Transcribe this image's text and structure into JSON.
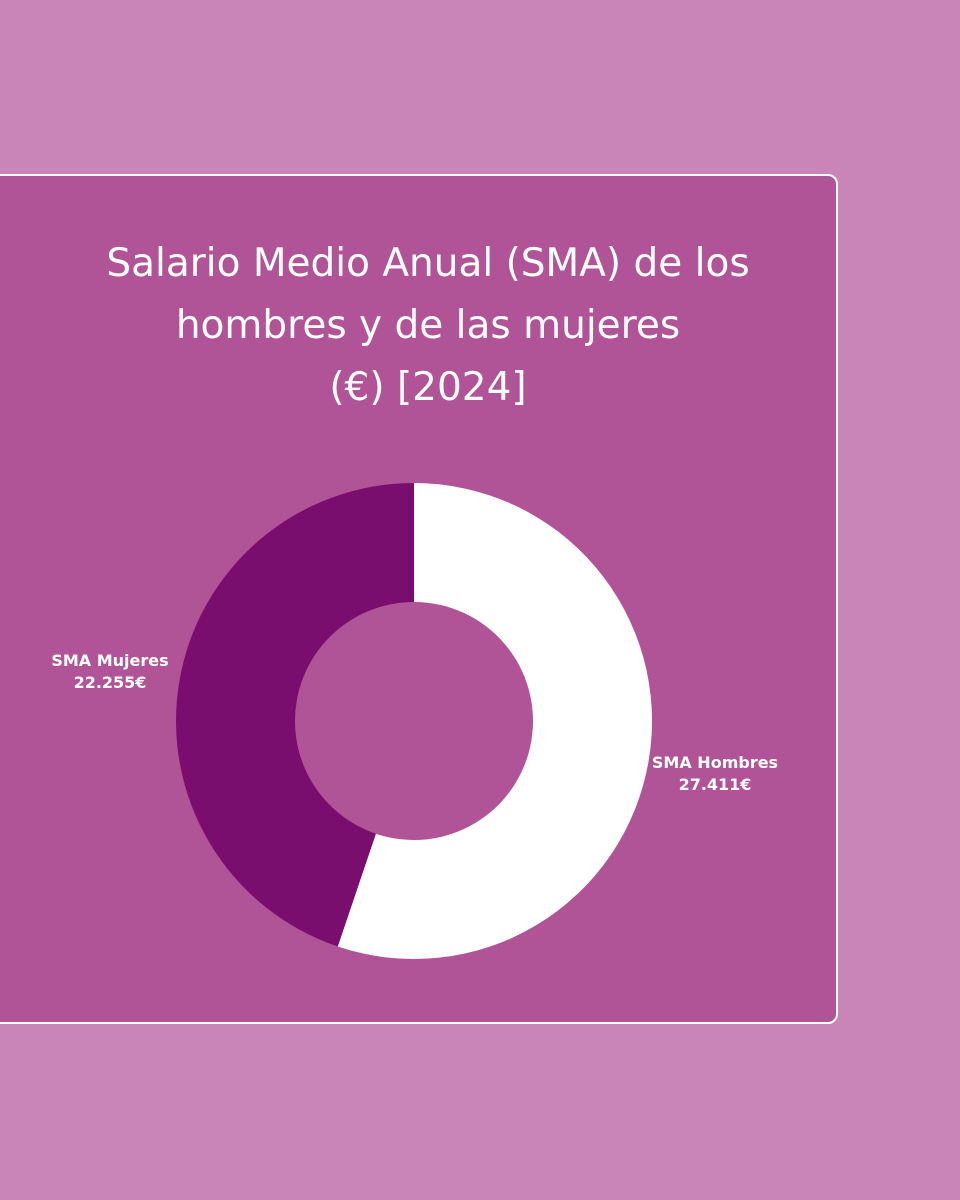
{
  "colors": {
    "page_background": "#c985b7",
    "card_background": "#b05397",
    "card_border": "#ffffff",
    "hombres": "#ffffff",
    "mujeres": "#7a0e6e",
    "text": "#ffffff"
  },
  "chart_data": {
    "type": "pie",
    "variant": "donut",
    "title": {
      "line1": "Salario Medio Anual (SMA) de los",
      "line2": "hombres y de las mujeres",
      "line3": "(€) [2024]"
    },
    "start": "top",
    "direction": "clockwise",
    "slices": [
      {
        "name": "SMA Hombres",
        "value": 27411,
        "value_label": "27.411€",
        "color": "#ffffff"
      },
      {
        "name": "SMA Mujeres",
        "value": 22255,
        "value_label": "22.255€",
        "color": "#7a0e6e"
      }
    ]
  }
}
